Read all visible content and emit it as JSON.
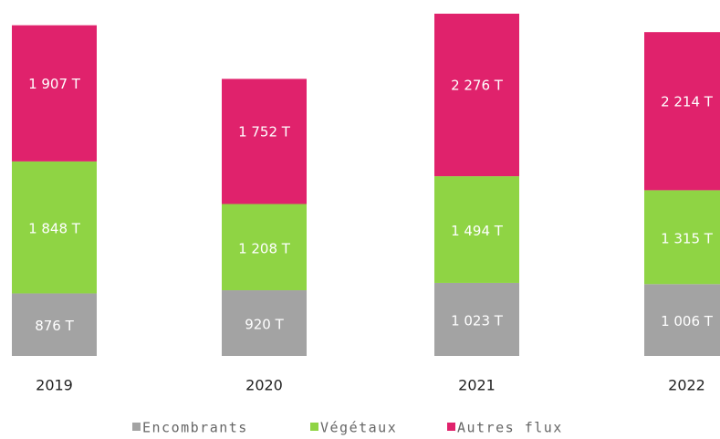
{
  "chart_data": {
    "type": "stacked-bar",
    "categories": [
      "2019",
      "2020",
      "2021",
      "2022"
    ],
    "series": [
      {
        "name": "Encombrants",
        "color": "#a3a3a3",
        "values": [
          876,
          920,
          1023,
          1006
        ],
        "value_labels": [
          "876 T",
          "920 T",
          "1 023 T",
          "1 006 T"
        ]
      },
      {
        "name": "Végétaux",
        "color": "#8fd444",
        "values": [
          1848,
          1208,
          1494,
          1315
        ],
        "value_labels": [
          "1 848 T",
          "1 208 T",
          "1 494 T",
          "1 315 T"
        ]
      },
      {
        "name": "Autres flux",
        "color": "#e0226c",
        "values": [
          1907,
          1752,
          2276,
          2214
        ],
        "value_labels": [
          "1 907 T",
          "1 752 T",
          "2 276 T",
          "2 214 T"
        ]
      }
    ],
    "legend": "bottom"
  }
}
